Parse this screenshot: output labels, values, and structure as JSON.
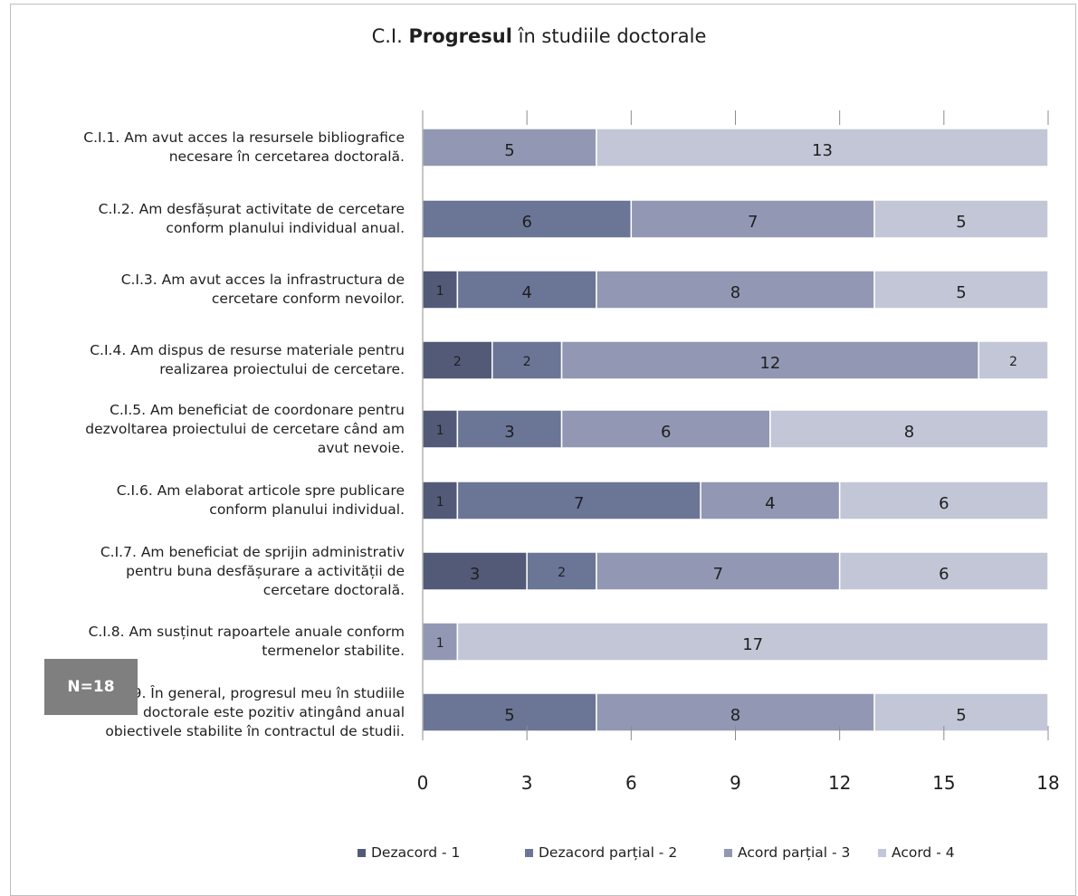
{
  "chart_data": {
    "type": "bar",
    "orientation": "horizontal",
    "stacked": true,
    "title": {
      "prefix": "C.I. ",
      "bold": "Progresul",
      "suffix": " în studiile doctorale"
    },
    "categories": [
      "C.I.1. Am avut acces la resursele bibliografice necesare în cercetarea doctorală.",
      "C.I.2. Am desfășurat activitate de cercetare conform planului individual anual.",
      "C.I.3. Am avut acces la infrastructura de cercetare conform nevoilor.",
      "C.I.4. Am dispus de resurse materiale pentru realizarea proiectului de cercetare.",
      "C.I.5. Am beneficiat de coordonare pentru dezvoltarea proiectului de cercetare când am avut nevoie.",
      "C.I.6. Am elaborat articole spre publicare conform planului individual.",
      "C.I.7. Am beneficiat de sprijin administrativ pentru buna desfășurare a activității de cercetare doctorală.",
      "C.I.8. Am susținut rapoartele anuale conform termenelor stabilite.",
      "C.I.9. În general, progresul meu în studiile doctorale este pozitiv atingând anual obiectivele stabilite în contractul de studii."
    ],
    "category_lines": [
      [
        "C.I.1. Am avut acces la resursele bibliografice",
        "necesare în cercetarea doctorală."
      ],
      [
        "C.I.2. Am desfășurat activitate de cercetare",
        "conform planului individual anual."
      ],
      [
        "C.I.3. Am avut acces la infrastructura de",
        "cercetare conform nevoilor."
      ],
      [
        "C.I.4. Am dispus de resurse materiale pentru",
        "realizarea proiectului de cercetare."
      ],
      [
        "C.I.5. Am beneficiat de coordonare pentru",
        "dezvoltarea proiectului de cercetare când am",
        "avut nevoie."
      ],
      [
        "C.I.6. Am elaborat articole spre publicare",
        "conform planului individual."
      ],
      [
        "C.I.7. Am beneficiat de sprijin administrativ",
        "pentru buna desfășurare a activității de",
        "cercetare doctorală."
      ],
      [
        "C.I.8. Am susținut rapoartele anuale conform",
        "termenelor stabilite."
      ],
      [
        "C.I.9. În general, progresul meu în studiile",
        "doctorale este pozitiv atingând anual",
        "obiectivele stabilite în contractul de studii."
      ]
    ],
    "series": [
      {
        "name": "Dezacord - 1",
        "color": "#525a78",
        "values": [
          0,
          0,
          1,
          2,
          1,
          1,
          3,
          0,
          0
        ]
      },
      {
        "name": "Dezacord parțial - 2",
        "color": "#6b7596",
        "values": [
          0,
          6,
          4,
          2,
          3,
          7,
          2,
          0,
          5
        ]
      },
      {
        "name": "Acord parțial - 3",
        "color": "#9298b3",
        "values": [
          5,
          7,
          8,
          12,
          6,
          4,
          7,
          1,
          8
        ]
      },
      {
        "name": "Acord - 4",
        "color": "#c3c6d6",
        "values": [
          13,
          5,
          5,
          2,
          8,
          6,
          6,
          17,
          5
        ]
      }
    ],
    "xlim": [
      0,
      18
    ],
    "xticks": [
      0,
      3,
      6,
      9,
      12,
      15,
      18
    ],
    "legend_position": "bottom",
    "grid": false
  },
  "n_label": "N=18"
}
